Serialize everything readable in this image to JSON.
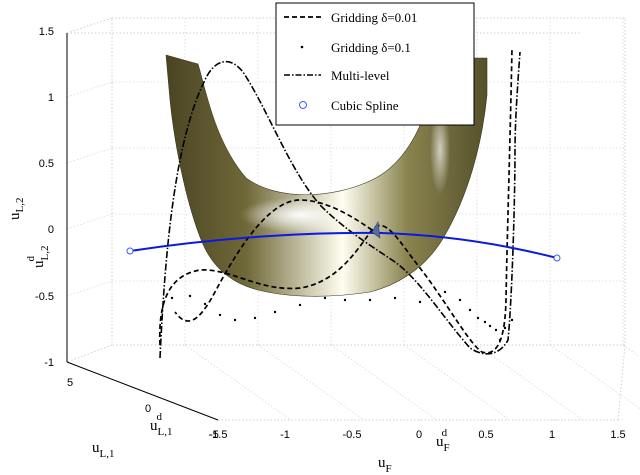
{
  "chart_data": {
    "type": "line",
    "view": "3d",
    "z_ticks": [
      "-1",
      "-0.5",
      "0",
      "0.5",
      "1",
      "1.5"
    ],
    "x_ticks": [
      "-1.5",
      "-1",
      "-0.5",
      "0",
      "0.5",
      "1",
      "1.5"
    ],
    "y_ticks": [
      "5",
      "0",
      "-5"
    ],
    "labels": {
      "zlabel": {
        "main": "u",
        "sub": "L,2"
      },
      "zlabel_d": {
        "main": "u",
        "sup": "d",
        "sub": "L,2"
      },
      "ylabel": {
        "main": "u",
        "sub": "L,1"
      },
      "ylabel_d": {
        "main": "u",
        "sup": "d",
        "sub": "L,1"
      },
      "xlabel": {
        "main": "u",
        "sub": "F"
      },
      "xlabel_d": {
        "main": "u",
        "sup": "d",
        "sub": "F"
      }
    },
    "surface_color": "#6b6438",
    "grid": true,
    "legend_position": "top-right",
    "series": [
      {
        "name": "Gridding δ=0.01",
        "style": "dashed",
        "color": "#000000"
      },
      {
        "name": "Gridding δ=0.1",
        "style": "dotted",
        "color": "#000000"
      },
      {
        "name": "Multi-level",
        "style": "dashdot",
        "color": "#000000"
      },
      {
        "name": "Cubic Spline",
        "style": "solid",
        "marker": "circle",
        "color": "#0a1adf"
      }
    ]
  }
}
